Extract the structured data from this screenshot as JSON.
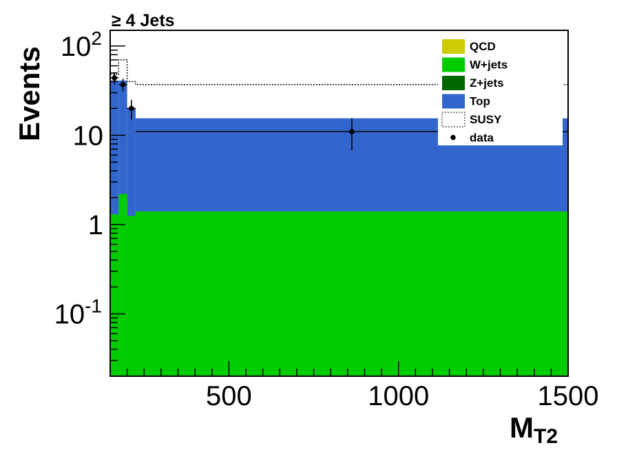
{
  "chart_data": {
    "type": "bar",
    "title": "≥ 4 Jets",
    "xlabel_main": "M",
    "xlabel_sub": "T2",
    "ylabel": "Events",
    "xlim": [
      150,
      1500
    ],
    "ylim": [
      0.02,
      150
    ],
    "yscale": "log",
    "grid": false,
    "legend_position": "top-right",
    "x_ticks": [
      {
        "value": 500,
        "label": "500"
      },
      {
        "value": 1000,
        "label": "1000"
      },
      {
        "value": 1500,
        "label": "1500"
      }
    ],
    "y_ticks": [
      {
        "value": 0.1,
        "base": "10",
        "exp": "-1"
      },
      {
        "value": 1,
        "base": "1",
        "exp": ""
      },
      {
        "value": 10,
        "base": "10",
        "exp": ""
      },
      {
        "value": 100,
        "base": "10",
        "exp": "2"
      }
    ],
    "bins": [
      {
        "lo": 150,
        "hi": 175,
        "wjets": 1.3,
        "top_total": 41,
        "susy": 48
      },
      {
        "lo": 175,
        "hi": 200,
        "wjets": 2.2,
        "top_total": 41,
        "susy": 70
      },
      {
        "lo": 200,
        "hi": 225,
        "wjets": 1.25,
        "top_total": 20,
        "susy": 40
      },
      {
        "lo": 225,
        "hi": 1500,
        "wjets": 1.4,
        "top_total": 15.5,
        "susy": 37
      }
    ],
    "data_points": [
      {
        "x": 162.5,
        "xerr_lo": 12.5,
        "xerr_hi": 12.5,
        "y": 44,
        "yerr_lo": 7,
        "yerr_hi": 7
      },
      {
        "x": 187.5,
        "xerr_lo": 12.5,
        "xerr_hi": 12.5,
        "y": 37,
        "yerr_lo": 6,
        "yerr_hi": 6
      },
      {
        "x": 212.5,
        "xerr_lo": 12.5,
        "xerr_hi": 12.5,
        "y": 20,
        "yerr_lo": 5,
        "yerr_hi": 5
      },
      {
        "x": 862.5,
        "xerr_lo": 637.5,
        "xerr_hi": 637.5,
        "y": 11,
        "yerr_lo": 4.2,
        "yerr_hi": 4.5
      }
    ],
    "legend": [
      {
        "label": "QCD",
        "color": "#cccc00",
        "style": "fill"
      },
      {
        "label": "W+jets",
        "color": "#00cc00",
        "style": "fill"
      },
      {
        "label": "Z+jets",
        "color": "#006600",
        "style": "fill"
      },
      {
        "label": "Top",
        "color": "#3366cc",
        "style": "fill"
      },
      {
        "label": "SUSY",
        "color": "#000000",
        "style": "dotted"
      },
      {
        "label": "data",
        "color": "#000000",
        "style": "marker"
      }
    ],
    "colors": {
      "wjets": "#00cc00",
      "top": "#3366cc",
      "susy": "#000000",
      "data": "#000000"
    }
  }
}
